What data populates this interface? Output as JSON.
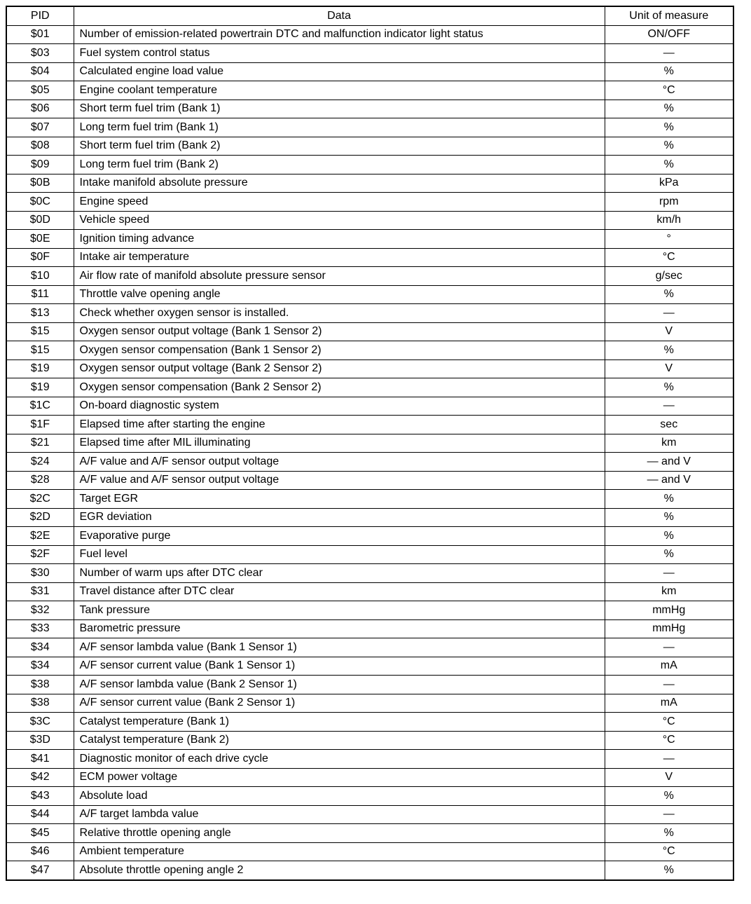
{
  "headers": {
    "pid": "PID",
    "data": "Data",
    "unit": "Unit of measure"
  },
  "rows": [
    {
      "pid": "$01",
      "data": "Number of emission-related powertrain DTC and malfunction indicator light status",
      "unit": "ON/OFF"
    },
    {
      "pid": "$03",
      "data": "Fuel system control status",
      "unit": "—"
    },
    {
      "pid": "$04",
      "data": "Calculated engine load value",
      "unit": "%"
    },
    {
      "pid": "$05",
      "data": "Engine coolant temperature",
      "unit": "°C"
    },
    {
      "pid": "$06",
      "data": "Short term fuel trim (Bank 1)",
      "unit": "%"
    },
    {
      "pid": "$07",
      "data": "Long term fuel trim (Bank 1)",
      "unit": "%"
    },
    {
      "pid": "$08",
      "data": "Short term fuel trim (Bank 2)",
      "unit": "%"
    },
    {
      "pid": "$09",
      "data": "Long term fuel trim (Bank 2)",
      "unit": "%"
    },
    {
      "pid": "$0B",
      "data": "Intake manifold absolute pressure",
      "unit": "kPa"
    },
    {
      "pid": "$0C",
      "data": "Engine speed",
      "unit": "rpm"
    },
    {
      "pid": "$0D",
      "data": "Vehicle speed",
      "unit": "km/h"
    },
    {
      "pid": "$0E",
      "data": "Ignition timing advance",
      "unit": "°"
    },
    {
      "pid": "$0F",
      "data": "Intake air temperature",
      "unit": "°C"
    },
    {
      "pid": "$10",
      "data": "Air flow rate of manifold absolute pressure sensor",
      "unit": "g/sec"
    },
    {
      "pid": "$11",
      "data": "Throttle valve opening angle",
      "unit": "%"
    },
    {
      "pid": "$13",
      "data": "Check whether oxygen sensor is installed.",
      "unit": "—"
    },
    {
      "pid": "$15",
      "data": "Oxygen sensor output voltage (Bank 1 Sensor 2)",
      "unit": "V"
    },
    {
      "pid": "$15",
      "data": "Oxygen sensor compensation (Bank 1 Sensor 2)",
      "unit": "%"
    },
    {
      "pid": "$19",
      "data": "Oxygen sensor output voltage (Bank 2 Sensor 2)",
      "unit": "V"
    },
    {
      "pid": "$19",
      "data": "Oxygen sensor compensation (Bank 2 Sensor 2)",
      "unit": "%"
    },
    {
      "pid": "$1C",
      "data": "On-board diagnostic system",
      "unit": "—"
    },
    {
      "pid": "$1F",
      "data": "Elapsed time after starting the engine",
      "unit": "sec"
    },
    {
      "pid": "$21",
      "data": "Elapsed time after MIL illuminating",
      "unit": "km"
    },
    {
      "pid": "$24",
      "data": "A/F value and A/F sensor output voltage",
      "unit": "— and V"
    },
    {
      "pid": "$28",
      "data": "A/F value and A/F sensor output voltage",
      "unit": "— and V"
    },
    {
      "pid": "$2C",
      "data": "Target EGR",
      "unit": "%"
    },
    {
      "pid": "$2D",
      "data": "EGR deviation",
      "unit": "%"
    },
    {
      "pid": "$2E",
      "data": "Evaporative purge",
      "unit": "%"
    },
    {
      "pid": "$2F",
      "data": "Fuel level",
      "unit": "%"
    },
    {
      "pid": "$30",
      "data": "Number of warm ups after DTC clear",
      "unit": "—"
    },
    {
      "pid": "$31",
      "data": "Travel distance after DTC clear",
      "unit": "km"
    },
    {
      "pid": "$32",
      "data": "Tank pressure",
      "unit": "mmHg"
    },
    {
      "pid": "$33",
      "data": "Barometric pressure",
      "unit": "mmHg"
    },
    {
      "pid": "$34",
      "data": "A/F sensor lambda value (Bank 1 Sensor 1)",
      "unit": "—"
    },
    {
      "pid": "$34",
      "data": "A/F sensor current value (Bank 1 Sensor 1)",
      "unit": "mA"
    },
    {
      "pid": "$38",
      "data": "A/F sensor lambda value (Bank 2 Sensor 1)",
      "unit": "—"
    },
    {
      "pid": "$38",
      "data": "A/F sensor current value (Bank 2 Sensor 1)",
      "unit": "mA"
    },
    {
      "pid": "$3C",
      "data": "Catalyst temperature (Bank 1)",
      "unit": "°C"
    },
    {
      "pid": "$3D",
      "data": "Catalyst temperature (Bank 2)",
      "unit": "°C"
    },
    {
      "pid": "$41",
      "data": "Diagnostic monitor of each drive cycle",
      "unit": "—"
    },
    {
      "pid": "$42",
      "data": "ECM power voltage",
      "unit": "V"
    },
    {
      "pid": "$43",
      "data": "Absolute load",
      "unit": "%"
    },
    {
      "pid": "$44",
      "data": "A/F target lambda value",
      "unit": "—"
    },
    {
      "pid": "$45",
      "data": "Relative throttle opening angle",
      "unit": "%"
    },
    {
      "pid": "$46",
      "data": "Ambient temperature",
      "unit": "°C"
    },
    {
      "pid": "$47",
      "data": "Absolute throttle opening angle 2",
      "unit": "%"
    }
  ]
}
